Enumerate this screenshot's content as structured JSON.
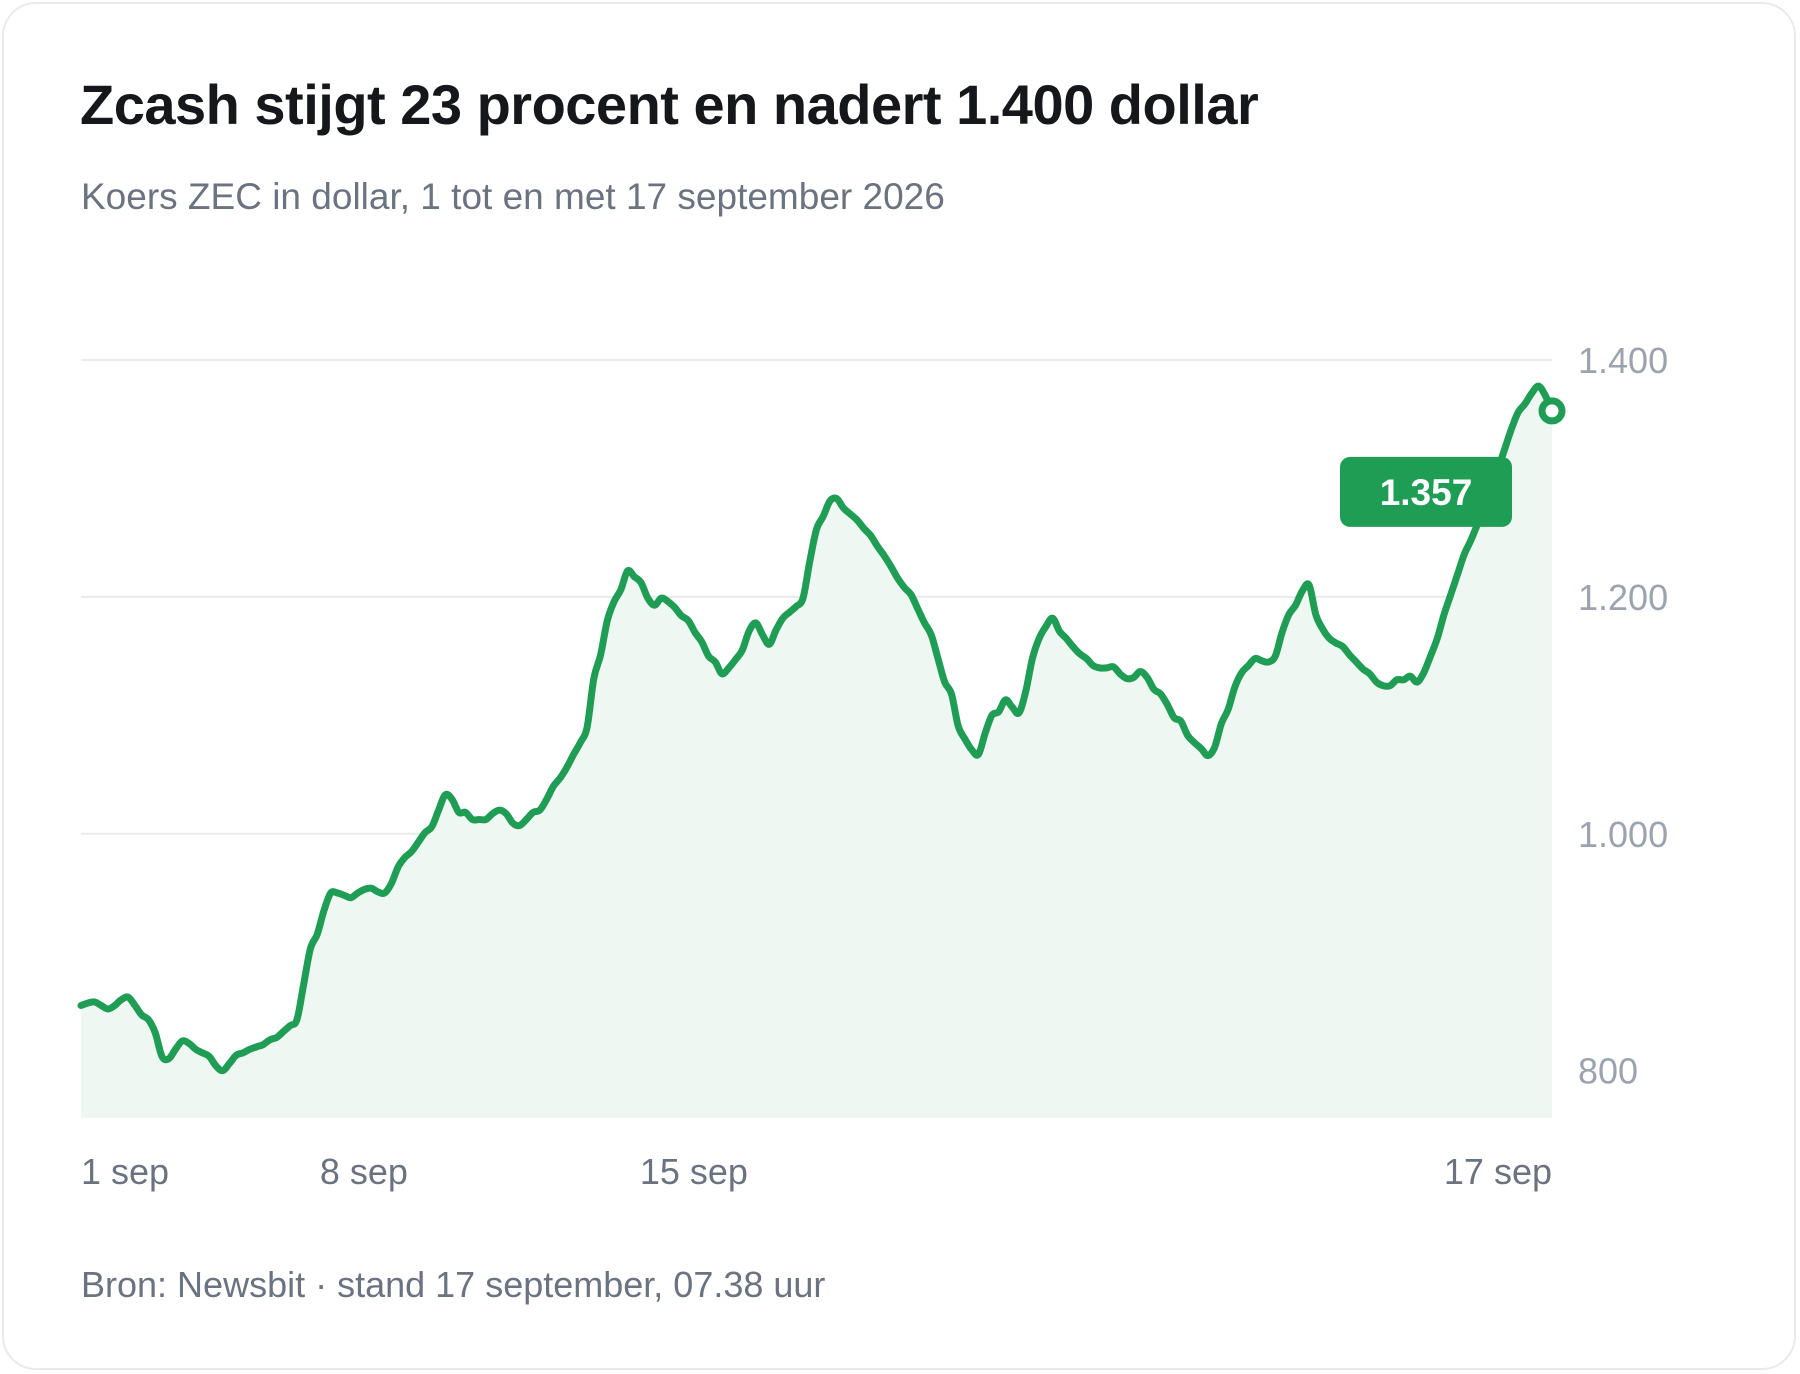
{
  "title": "Zcash stijgt 23 procent en nadert 1.400 dollar",
  "subtitle": "Koers ZEC in dollar, 1 tot en met 17 september 2026",
  "source": "Bron: Newsbit · stand 17 september, 07.38 uur",
  "colors": {
    "line": "#1f9d55",
    "fill": "#eef7f1",
    "grid": "#e8eaed",
    "badge": "#1f9d55"
  },
  "chart_data": {
    "type": "line",
    "title": "Zcash stijgt 23 procent en nadert 1.400 dollar",
    "subtitle": "Koers ZEC in dollar, 1 tot en met 17 september 2026",
    "ylim": [
      760,
      1400
    ],
    "yticks": [
      800,
      1000,
      1200,
      1400
    ],
    "ytick_labels": [
      "800",
      "1.000",
      "1.200",
      "1.400"
    ],
    "xlim": [
      0,
      156
    ],
    "xticks": [
      {
        "x": 0,
        "label": "1 sep"
      },
      {
        "x": 30,
        "label": "8 sep"
      },
      {
        "x": 65,
        "label": "15 sep"
      },
      {
        "x": 156,
        "label": "17 sep"
      }
    ],
    "grid": true,
    "last_value_label": "1.357",
    "values": [
      855,
      857,
      858,
      855,
      852,
      855,
      860,
      862,
      855,
      847,
      843,
      832,
      812,
      810,
      818,
      825,
      823,
      818,
      815,
      812,
      804,
      800,
      806,
      813,
      815,
      818,
      820,
      822,
      826,
      828,
      833,
      838,
      843,
      873,
      903,
      915,
      935,
      950,
      950,
      948,
      946,
      950,
      953,
      954,
      951,
      950,
      958,
      972,
      980,
      985,
      993,
      1001,
      1006,
      1020,
      1033,
      1029,
      1018,
      1018,
      1012,
      1012,
      1012,
      1017,
      1020,
      1017,
      1009,
      1007,
      1012,
      1018,
      1020,
      1029,
      1040,
      1047,
      1056,
      1067,
      1077,
      1090,
      1131,
      1151,
      1180,
      1196,
      1206,
      1222,
      1217,
      1212,
      1199,
      1193,
      1199,
      1196,
      1191,
      1184,
      1180,
      1170,
      1162,
      1150,
      1145,
      1135,
      1140,
      1147,
      1155,
      1171,
      1178,
      1168,
      1160,
      1172,
      1182,
      1187,
      1192,
      1199,
      1230,
      1257,
      1268,
      1281,
      1283,
      1275,
      1270,
      1265,
      1258,
      1252,
      1243,
      1235,
      1226,
      1216,
      1208,
      1202,
      1190,
      1178,
      1168,
      1148,
      1128,
      1118,
      1091,
      1080,
      1071,
      1067,
      1085,
      1100,
      1103,
      1113,
      1107,
      1102,
      1120,
      1148,
      1165,
      1175,
      1182,
      1171,
      1165,
      1158,
      1152,
      1148,
      1142,
      1140,
      1140,
      1141,
      1135,
      1131,
      1132,
      1137,
      1132,
      1122,
      1118,
      1109,
      1098,
      1095,
      1083,
      1077,
      1072,
      1066,
      1073,
      1093,
      1105,
      1124,
      1136,
      1142,
      1148,
      1146,
      1145,
      1150,
      1170,
      1185,
      1193,
      1205,
      1210,
      1185,
      1173,
      1165,
      1161,
      1158,
      1151,
      1145,
      1139,
      1135,
      1128,
      1125,
      1125,
      1130,
      1130,
      1133,
      1128,
      1136,
      1150,
      1165,
      1185,
      1202,
      1219,
      1236,
      1248,
      1262,
      1276,
      1291,
      1308,
      1325,
      1342,
      1356,
      1363,
      1372,
      1378,
      1370,
      1357
    ]
  }
}
